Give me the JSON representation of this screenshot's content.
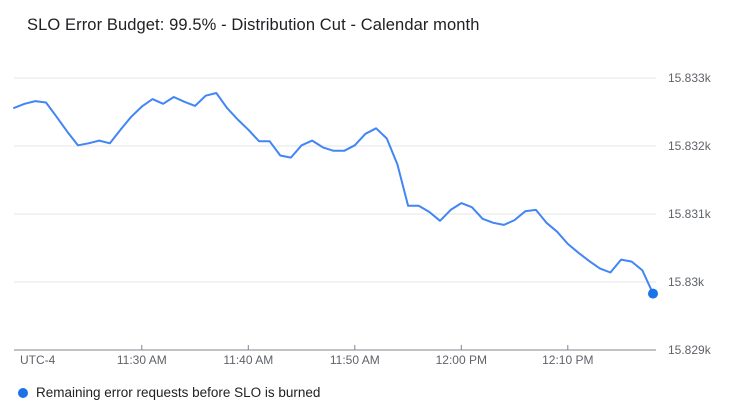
{
  "title": "SLO Error Budget: 99.5% - Distribution Cut - Calendar month",
  "colors": {
    "line": "#4285f4",
    "end_marker": "#1a73e8",
    "gridline": "#e6e6e6",
    "axis_line": "#80868b",
    "axis_text": "#5f6368",
    "title_text": "#202124"
  },
  "chart_data": {
    "type": "line",
    "title": "SLO Error Budget: 99.5% - Distribution Cut - Calendar month",
    "legend_position": "bottom-left",
    "grid": true,
    "x_axis": {
      "timezone_label": "UTC-4",
      "range_minutes": [
        0,
        60
      ],
      "ticks": [
        {
          "label": "11:30 AM",
          "t": 12
        },
        {
          "label": "11:40 AM",
          "t": 22
        },
        {
          "label": "11:50 AM",
          "t": 32
        },
        {
          "label": "12:00 PM",
          "t": 42
        },
        {
          "label": "12:10 PM",
          "t": 52
        }
      ]
    },
    "y_axis": {
      "range": [
        15829,
        15833
      ],
      "ticks": [
        {
          "label": "15.833k",
          "value": 15833
        },
        {
          "label": "15.832k",
          "value": 15832
        },
        {
          "label": "15.831k",
          "value": 15831
        },
        {
          "label": "15.83k",
          "value": 15830
        },
        {
          "label": "15.829k",
          "value": 15829
        }
      ]
    },
    "series": [
      {
        "name": "Remaining error requests before SLO is burned",
        "color": "#4285f4",
        "end_marker_color": "#1a73e8",
        "t_start_minutes": 0,
        "t_step_minutes": 1,
        "values": [
          15832.56,
          15832.62,
          15832.66,
          15832.64,
          15832.43,
          15832.21,
          15832.01,
          15832.04,
          15832.08,
          15832.04,
          15832.24,
          15832.43,
          15832.58,
          15832.69,
          15832.62,
          15832.72,
          15832.65,
          15832.59,
          15832.74,
          15832.78,
          15832.56,
          15832.39,
          15832.24,
          15832.07,
          15832.07,
          15831.86,
          15831.83,
          15832.01,
          15832.08,
          15831.98,
          15831.93,
          15831.93,
          15832.01,
          15832.18,
          15832.26,
          15832.11,
          15831.73,
          15831.12,
          15831.12,
          15831.03,
          15830.9,
          15831.06,
          15831.16,
          15831.1,
          15830.93,
          15830.87,
          15830.84,
          15830.91,
          15831.04,
          15831.06,
          15830.87,
          15830.74,
          15830.56,
          15830.43,
          15830.31,
          15830.2,
          15830.14,
          15830.33,
          15830.3,
          15830.17,
          15829.83
        ]
      }
    ]
  }
}
